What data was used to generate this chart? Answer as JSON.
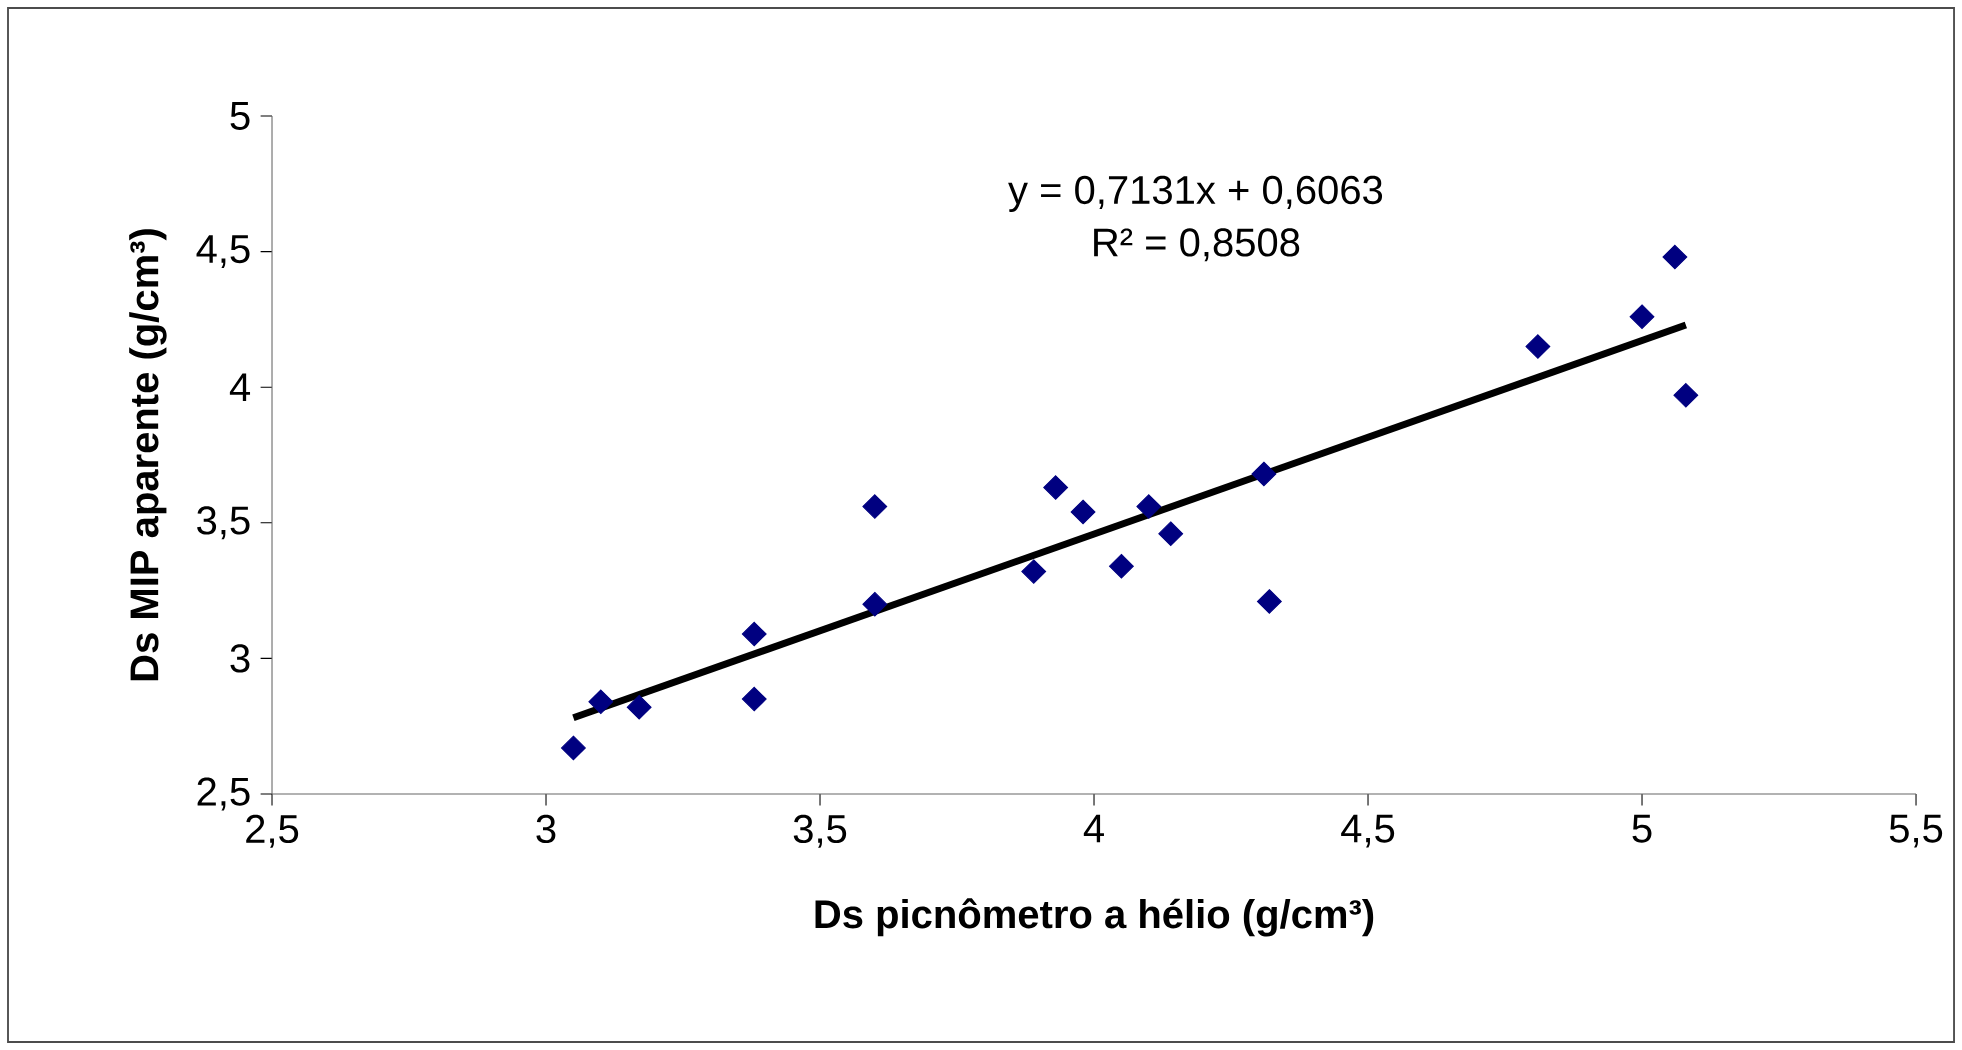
{
  "chart_data": {
    "type": "scatter",
    "xlabel": "Ds picnômetro a hélio (g/cm³)",
    "ylabel": "Ds MIP aparente (g/cm³)",
    "annotations": [
      "y = 0,7131x + 0,6063",
      "R² = 0,8508"
    ],
    "series": [
      {
        "color": "#000080",
        "marker": "diamond",
        "x": [
          3.05,
          3.1,
          3.17,
          3.38,
          3.38,
          3.6,
          3.6,
          3.89,
          3.93,
          3.98,
          4.05,
          4.1,
          4.14,
          4.31,
          4.32,
          4.81,
          5.0,
          5.06,
          5.08
        ],
        "values": [
          2.67,
          2.84,
          2.82,
          3.09,
          2.85,
          3.2,
          3.56,
          3.32,
          3.63,
          3.54,
          3.34,
          3.56,
          3.46,
          3.68,
          3.21,
          4.15,
          4.26,
          4.48,
          3.97
        ]
      },
      {
        "type": "line",
        "color": "#000000",
        "marker": "none",
        "x": [
          3.05,
          5.08
        ],
        "values": [
          2.781,
          4.229
        ]
      }
    ],
    "xlim": [
      2.5,
      5.5
    ],
    "ylim": [
      2.5,
      5
    ],
    "xticks": [
      {
        "value": 2.5,
        "label": "2,5"
      },
      3,
      {
        "value": 3.5,
        "label": "3,5"
      },
      4,
      {
        "value": 4.5,
        "label": "4,5"
      },
      5,
      {
        "value": 5.5,
        "label": "5,5"
      }
    ],
    "yticks": [
      {
        "value": 2.5,
        "label": "2,5"
      },
      3,
      {
        "value": 3.5,
        "label": "3,5"
      },
      4,
      {
        "value": 4.5,
        "label": "4,5"
      },
      5
    ],
    "grid": false
  }
}
